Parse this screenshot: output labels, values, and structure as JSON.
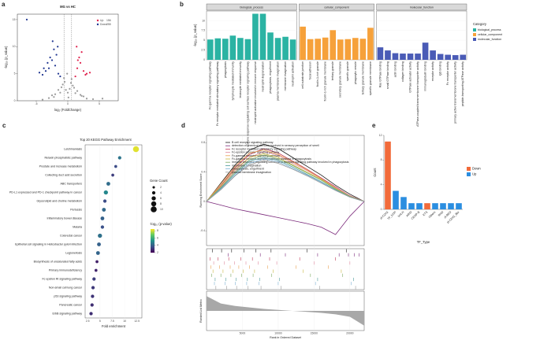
{
  "chart_data": [
    {
      "panel": "a",
      "type": "scatter",
      "title": "MG vs HC",
      "x_label": "log₂ (FoldChange)",
      "y_label": "-log₁₀ (p_value)",
      "xlim": [
        -8,
        8
      ],
      "xticks": [
        -5,
        0,
        5
      ],
      "ylim": [
        0,
        16
      ],
      "yticks": [
        0,
        5,
        10,
        15
      ],
      "thresholds": {
        "x": [
          -0.6,
          0.6
        ]
      },
      "other_points": {
        "color": "#9a9a9a",
        "x": [
          -3,
          -2.5,
          -2,
          -1.5,
          -1,
          -0.8,
          -0.5,
          -0.3,
          0,
          0.3,
          0.5,
          0.8,
          1,
          1.5,
          2,
          2.5,
          3,
          -1.2,
          1.2,
          -0.6,
          0.6,
          0.1,
          -0.1,
          2.2,
          -2.2,
          4,
          -4,
          5.5
        ],
        "y": [
          0.5,
          1,
          1.2,
          2,
          2.5,
          3,
          3.5,
          2,
          1.5,
          2.2,
          3.3,
          2.8,
          2.4,
          1.8,
          1.1,
          0.8,
          0.4,
          1.5,
          1.4,
          4.2,
          4,
          0.6,
          5,
          0.9,
          0.7,
          0.3,
          0.2,
          0.4
        ]
      },
      "series": [
        {
          "name": "Up",
          "count": 156,
          "color": "#e0244f",
          "x": [
            1.2,
            1.5,
            2,
            2.5,
            3,
            1.8,
            2.2,
            1.4,
            2.8,
            1.6,
            3.5
          ],
          "y": [
            4.5,
            6,
            7,
            5.5,
            5,
            8,
            9,
            10,
            4.8,
            7.5,
            5.2
          ]
        },
        {
          "name": "Down",
          "count": 255,
          "color": "#1f3590",
          "x": [
            -1.5,
            -2,
            -2.5,
            -3,
            -3.5,
            -4,
            -1.8,
            -2.2,
            -2.8,
            -3.2,
            -1.2,
            -1.6,
            -2.4,
            -3.8,
            -4.5,
            -6.5
          ],
          "y": [
            5,
            6.5,
            7.5,
            6,
            5.5,
            4.8,
            8.5,
            9.5,
            8,
            7,
            4.5,
            10,
            11,
            6,
            5.2,
            15
          ]
        }
      ]
    },
    {
      "panel": "b",
      "type": "facet_bar",
      "y_label": "-log₁₀ (p_value)",
      "legend_title": "Category",
      "ylim": [
        0,
        12.5
      ],
      "yticks": [
        0,
        2.5,
        5,
        7.5,
        10
      ],
      "facets": [
        {
          "name": "biological_process",
          "color": "#2bb3a3",
          "categories": [
            "Fc-gamma receptor signaling pathway",
            "Fc receptor mediated stimulatory signaling pathway",
            "phagocytosis",
            "lymphocyte mediated immunity",
            "leukocyte mediated immunity",
            "immune response-regulating cell surface receptor signaling pathway",
            "neutrophil activation involved in immune response",
            "neutrophil degranulation",
            "phagocytosis, engulfment",
            "plasma membrane invagination",
            "membrane invagination",
            "neutrophil activation"
          ],
          "values": [
            5.2,
            5.5,
            5.4,
            6.2,
            5.6,
            5.3,
            11.8,
            11.8,
            7.0,
            5.6,
            5.9,
            5.2
          ]
        },
        {
          "name": "cellular_component",
          "color": "#f6a13a",
          "categories": [
            "cell-substrate junction",
            "focal adhesion",
            "ficolin-1-rich granule",
            "ficolin-1-rich granule membrane",
            "tertiary granule",
            "secretory granule membrane",
            "specific granule",
            "phagocytic vesicle",
            "tertiary granule membrane",
            "specific granule membrane"
          ],
          "values": [
            8.5,
            5.3,
            5.4,
            5.7,
            7.6,
            5.2,
            5.3,
            5.6,
            5.4,
            8.2
          ]
        },
        {
          "name": "molecular_function",
          "color": "#4a5bb6",
          "categories": [
            "Ras GTPase binding",
            "small GTPase binding",
            "actin binding",
            "collagen binding",
            "GTPase activator activity",
            "ATPase-coupled transmembrane transporter activity",
            "immunoglobulin binding",
            "receptor activity",
            "IgG binding",
            "Fc receptor activity",
            "primary active transmembrane transporter activity",
            "peptide-transporting ATPase activity"
          ],
          "values": [
            3.2,
            2.4,
            1.7,
            1.6,
            1.6,
            1.6,
            4.4,
            2.4,
            1.5,
            1.3,
            1.2,
            1.3
          ]
        }
      ]
    },
    {
      "panel": "c",
      "type": "dot",
      "title": "Top 20 KEGG Pathway Enrichment",
      "x_label": "Fold enrichment",
      "size_title": "Gene Count",
      "color_title": "-log₁₀ (p-value)",
      "xlim": [
        2,
        13.5
      ],
      "xticks": [
        2.5,
        5,
        7.5,
        10,
        12.5
      ],
      "categories": [
        "Leishmaniasis",
        "Relaxin phosphatidic pathway",
        "Prostate and increase metabolism",
        "Collecting duct acid secretion",
        "ABC transporters",
        "PD-L1 expressed and PD-1 checkpoint pathway in cancer",
        "Glycerolipid and choline metabolism",
        "Pertussis",
        "Inflammatory bowel disease",
        "Malaria",
        "Colorectal cancer",
        "Epithelial cell signaling in Helicobacter pylori infection",
        "Legionellosis",
        "Biosynthesis of unsaturated fatty acids",
        "Primary immunodeficiency",
        "Fc epsilon RI signaling pathway",
        "Non-small cell lung cancer",
        "p53 signaling pathway",
        "Pancreatic cancer",
        "ErbB signaling pathway"
      ],
      "values": [
        12.3,
        9.0,
        8.2,
        7.6,
        6.7,
        6.2,
        6.0,
        5.8,
        5.5,
        5.5,
        5.0,
        4.8,
        4.6,
        4.4,
        4.2,
        3.8,
        3.6,
        3.5,
        3.4,
        3.2
      ],
      "counts": [
        10,
        4,
        3,
        3,
        5,
        6,
        4,
        5,
        5,
        4,
        6,
        5,
        5,
        3,
        3,
        4,
        4,
        4,
        4,
        4
      ],
      "pvalues": [
        8.2,
        4.5,
        3.5,
        3.2,
        4.3,
        5.0,
        3.5,
        4.2,
        4.0,
        3.6,
        4.4,
        4.0,
        4.1,
        2.6,
        2.7,
        3.2,
        3.1,
        3.0,
        2.9,
        2.9
      ],
      "size_ticks": [
        2,
        4,
        6,
        8,
        10
      ],
      "clim": [
        2,
        8.5
      ],
      "cticks": [
        2,
        4,
        6,
        8
      ],
      "colorscale": [
        "#440154",
        "#3b528b",
        "#21918c",
        "#5ec962",
        "#fde725"
      ]
    },
    {
      "panel": "d",
      "type": "gsea",
      "y_label": "Running Enrichment Score",
      "metric_label": "Ranked List Metric",
      "x_label": "Rank in Ordered Dataset",
      "xlim": [
        0,
        22000
      ],
      "xticks": [
        5000,
        10000,
        15000,
        20000
      ],
      "ylim": [
        -0.6,
        0.9
      ],
      "yticks": [
        -0.4,
        0,
        0.4,
        0.8
      ],
      "x": [
        0,
        2000,
        4000,
        6000,
        8000,
        10000,
        12000,
        14000,
        16000,
        18000,
        20000,
        22000
      ],
      "series": [
        {
          "name": "B cell receptor signaling pathway",
          "color": "#1a1a1a",
          "values": [
            0,
            0.25,
            0.5,
            0.7,
            0.78,
            0.72,
            0.6,
            0.48,
            0.36,
            0.22,
            0.1,
            0
          ],
          "hits": [
            800,
            2100,
            3500,
            5200,
            6900,
            9000,
            14000,
            19500
          ]
        },
        {
          "name": "detection of chemical stimulus involved in sensory perception of smell",
          "color": "#7b2a7b",
          "values": [
            0,
            -0.05,
            -0.1,
            -0.14,
            -0.18,
            -0.22,
            -0.26,
            -0.3,
            -0.35,
            -0.45,
            -0.2,
            0
          ],
          "hits": [
            3000,
            7500,
            11000,
            15500,
            18500,
            19800,
            20600,
            21300
          ]
        },
        {
          "name": "Fc receptor mediated stimulatory signaling pathway",
          "color": "#c23b5a",
          "values": [
            0,
            0.22,
            0.46,
            0.64,
            0.72,
            0.66,
            0.55,
            0.44,
            0.32,
            0.2,
            0.08,
            0
          ],
          "hits": [
            500,
            1600,
            3100,
            4800,
            6400,
            8800,
            13000,
            18000
          ]
        },
        {
          "name": "Fc-epsilon receptor signaling pathway",
          "color": "#e08aa0",
          "values": [
            0,
            0.2,
            0.42,
            0.6,
            0.68,
            0.63,
            0.52,
            0.42,
            0.31,
            0.19,
            0.08,
            0
          ],
          "hits": [
            1000,
            2500,
            3900,
            5500,
            7200,
            9800,
            15000,
            20000
          ]
        },
        {
          "name": "Fc-gamma receptor signaling pathway",
          "color": "#e8a050",
          "values": [
            0,
            0.24,
            0.48,
            0.66,
            0.7,
            0.64,
            0.54,
            0.43,
            0.31,
            0.18,
            0.07,
            0
          ],
          "hits": [
            600,
            1800,
            3300,
            4500,
            6000,
            8500,
            12500,
            17000
          ]
        },
        {
          "name": "Fc-gamma receptor signaling pathway involved in phagocytosis",
          "color": "#c9b640",
          "values": [
            0,
            0.21,
            0.44,
            0.6,
            0.65,
            0.6,
            0.5,
            0.4,
            0.3,
            0.18,
            0.07,
            0
          ],
          "hits": [
            900,
            2300,
            3700,
            5100,
            6700,
            9300,
            13500,
            18800
          ]
        },
        {
          "name": "immune response-regulating cell surface receptor signaling pathway involved in phagocytosis",
          "color": "#7aa860",
          "values": [
            0,
            0.19,
            0.4,
            0.57,
            0.63,
            0.58,
            0.49,
            0.39,
            0.29,
            0.17,
            0.07,
            0
          ],
          "hits": [
            700,
            2000,
            3400,
            4900,
            6500,
            9100,
            14500,
            19000
          ]
        },
        {
          "name": "membrane invagination",
          "color": "#4a9a9a",
          "values": [
            0,
            0.18,
            0.38,
            0.55,
            0.6,
            0.56,
            0.47,
            0.37,
            0.27,
            0.16,
            0.06,
            0
          ],
          "hits": [
            1200,
            2700,
            4100,
            5700,
            7400,
            10200,
            15500,
            20500
          ]
        },
        {
          "name": "phagocytosis, engulfment",
          "color": "#7fb2d6",
          "values": [
            0,
            0.17,
            0.36,
            0.52,
            0.58,
            0.54,
            0.45,
            0.36,
            0.26,
            0.15,
            0.06,
            0
          ],
          "hits": [
            1100,
            2600,
            4000,
            5600,
            7300,
            10000,
            15200,
            20200
          ]
        },
        {
          "name": "plasma membrane invagination",
          "color": "#9a9a9a",
          "values": [
            0,
            0.16,
            0.35,
            0.5,
            0.56,
            0.52,
            0.44,
            0.35,
            0.25,
            0.15,
            0.06,
            0
          ],
          "hits": [
            1300,
            2800,
            4200,
            5800,
            7600,
            10400,
            15800,
            20800
          ]
        }
      ],
      "metric": {
        "color": "#a8a8a8",
        "ylim": [
          -4,
          4
        ],
        "values": [
          3,
          1.5,
          1,
          0.7,
          0.4,
          0.2,
          0,
          -0.2,
          -0.4,
          -0.7,
          -1.2,
          -3
        ]
      }
    },
    {
      "panel": "e",
      "type": "bar",
      "x_label": "TF_Type",
      "y_label": "Count",
      "ylim": [
        0,
        12
      ],
      "yticks": [
        0,
        4,
        8,
        12
      ],
      "categories": [
        "zf-C2H2",
        "TF_bZIP",
        "bHLH",
        "ARID",
        "CENP-B",
        "ETS",
        "Others",
        "RHD",
        "zf-BED",
        "zf-C2H2_like"
      ],
      "series": [
        {
          "name": "Down",
          "color": "#f26b3a",
          "values": [
            11,
            null,
            null,
            null,
            null,
            1,
            null,
            null,
            null,
            null
          ]
        },
        {
          "name": "Up",
          "color": "#2b8ee0",
          "values": [
            null,
            3,
            2,
            1,
            1,
            null,
            1,
            1,
            1,
            1
          ]
        }
      ]
    }
  ]
}
